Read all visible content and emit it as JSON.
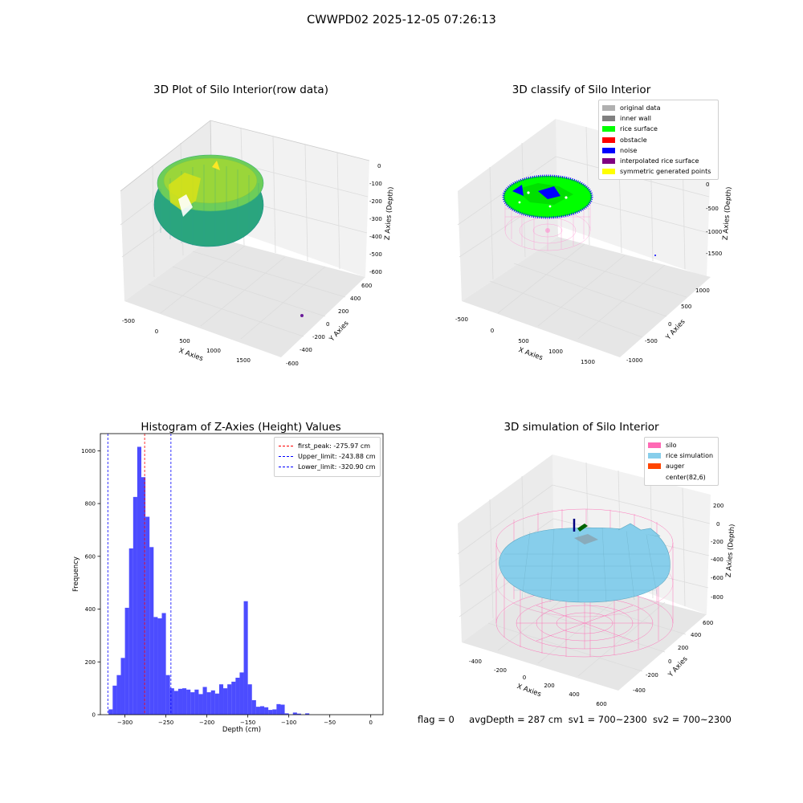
{
  "suptitle": "CWWPD02 2025-12-05 07:26:13",
  "panels": {
    "raw": {
      "title": "3D Plot of Silo Interior(row data)",
      "x_label": "X Axies",
      "y_label": "Y Axies",
      "z_label": "Z Axies (Depth)",
      "x_ticks": [
        "-500",
        "0",
        "500",
        "1000",
        "1500"
      ],
      "y_ticks": [
        "600",
        "400",
        "200",
        "0",
        "-200",
        "-400",
        "-600"
      ],
      "z_ticks": [
        "0",
        "-100",
        "-200",
        "-300",
        "-400",
        "-500",
        "-600"
      ],
      "colormap": "viridis"
    },
    "classify": {
      "title": "3D classify of Silo Interior",
      "x_label": "X Axies",
      "y_label": "Y Axies",
      "z_label": "Z Axies (Depth)",
      "x_ticks": [
        "-500",
        "0",
        "500",
        "1000",
        "1500"
      ],
      "y_ticks": [
        "1000",
        "500",
        "0",
        "-500",
        "-1000"
      ],
      "z_ticks": [
        "0",
        "-500",
        "-1000",
        "-1500"
      ],
      "legend": [
        {
          "label": "original data",
          "color": "#b0b0b0"
        },
        {
          "label": "inner wall",
          "color": "#808080"
        },
        {
          "label": "rice surface",
          "color": "#00ff00"
        },
        {
          "label": "obstacle",
          "color": "#ff0000"
        },
        {
          "label": "noise",
          "color": "#0000ff"
        },
        {
          "label": "interpolated rice surface",
          "color": "#800080"
        },
        {
          "label": "symmetric generated points",
          "color": "#ffff00"
        }
      ]
    },
    "simulation": {
      "title": "3D simulation of Silo Interior",
      "x_label": "X Axies",
      "y_label": "Y Axies",
      "z_label": "Z Axies (Depth)",
      "x_ticks": [
        "-400",
        "-200",
        "0",
        "200",
        "400",
        "600"
      ],
      "y_ticks": [
        "600",
        "400",
        "200",
        "0",
        "-200",
        "-400"
      ],
      "z_ticks": [
        "200",
        "0",
        "-200",
        "-400",
        "-600",
        "-800"
      ],
      "legend": [
        {
          "label": "silo",
          "color": "#ff69b4"
        },
        {
          "label": "rice simulation",
          "color": "#87ceeb"
        },
        {
          "label": "auger",
          "color": "#ff4500"
        },
        {
          "label": "center(82,6)",
          "color": ""
        }
      ]
    }
  },
  "chart_data": {
    "type": "bar",
    "title": "Histogram of Z-Axies (Height) Values",
    "xlabel": "Depth (cm)",
    "ylabel": "Frequency",
    "xlim": [
      -330,
      15
    ],
    "ylim": [
      0,
      1065
    ],
    "x_ticks": [
      -300,
      -250,
      -200,
      -150,
      -100,
      -50,
      0
    ],
    "y_ticks": [
      0,
      200,
      400,
      600,
      800,
      1000
    ],
    "bin_width": 5.0,
    "bin_start": -320,
    "values": [
      20,
      110,
      150,
      215,
      405,
      630,
      825,
      1015,
      900,
      750,
      635,
      370,
      365,
      385,
      150,
      100,
      90,
      98,
      100,
      95,
      85,
      95,
      78,
      105,
      85,
      92,
      80,
      115,
      100,
      115,
      125,
      140,
      160,
      430,
      115,
      55,
      30,
      32,
      28,
      18,
      20,
      40,
      38,
      5,
      0,
      8,
      4,
      0,
      5
    ],
    "bar_color": "#0000ff",
    "vlines": [
      {
        "label": "first_peak: -275.97 cm",
        "x": -275.97,
        "color": "#ff0000"
      },
      {
        "label": "Upper_limit: -243.88 cm",
        "x": -243.88,
        "color": "#0000ff"
      },
      {
        "label": "Lower_limit: -320.90 cm",
        "x": -320.9,
        "color": "#0000ff"
      }
    ],
    "legend_position": "top-right"
  },
  "footer": {
    "flag": "flag = 0",
    "avg": "avgDepth = 287 cm",
    "sv1": "sv1 = 700~2300",
    "sv2": "sv2 = 700~2300"
  }
}
